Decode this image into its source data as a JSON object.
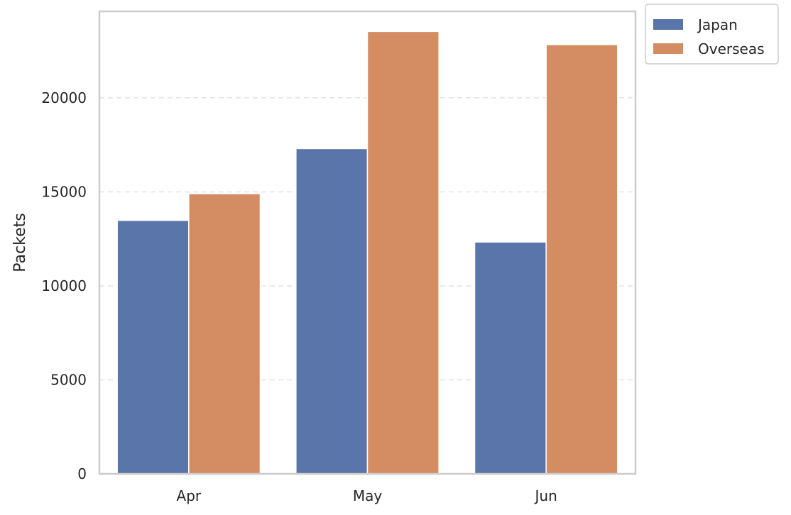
{
  "chart_data": {
    "type": "bar",
    "title": "",
    "xlabel": "",
    "ylabel": "Packets",
    "categories": [
      "Apr",
      "May",
      "Jun"
    ],
    "series": [
      {
        "name": "Japan",
        "color": "#5975a9",
        "values": [
          13480,
          17300,
          12330
        ]
      },
      {
        "name": "Overseas",
        "color": "#d48d62",
        "values": [
          14900,
          23530,
          22830
        ]
      }
    ],
    "ylim": [
      0,
      24600
    ],
    "yticks": [
      0,
      5000,
      10000,
      15000,
      20000
    ],
    "ytick_labels": [
      "0",
      "5000",
      "10000",
      "15000",
      "20000"
    ],
    "grid": "y-dashed",
    "legend_placement": "outside-top-right"
  }
}
